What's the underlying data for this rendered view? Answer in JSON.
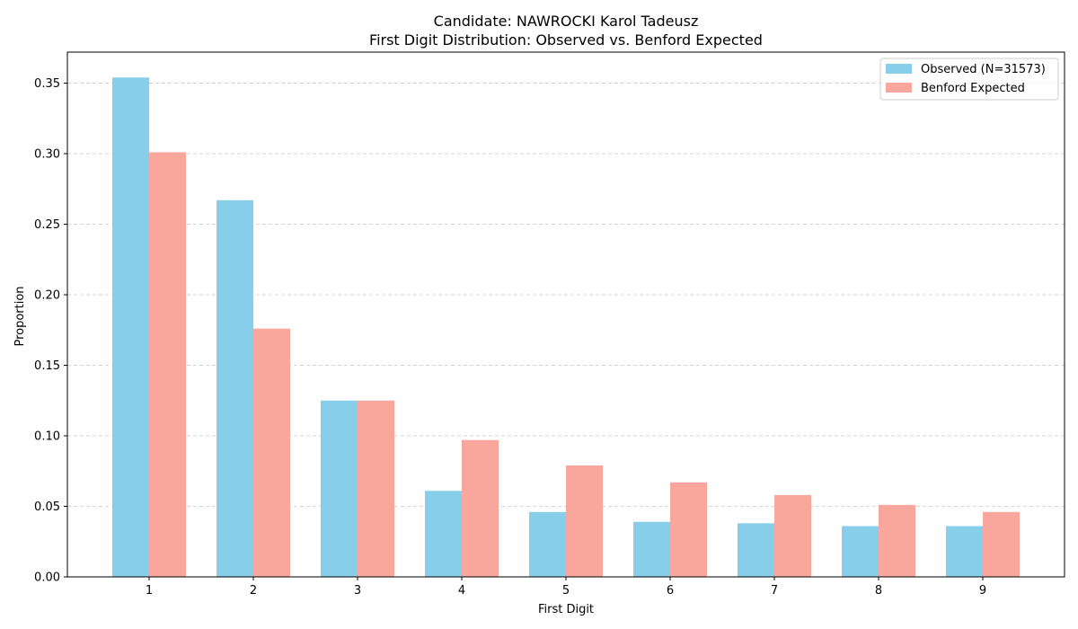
{
  "chart_data": {
    "type": "bar",
    "title": "Candidate: NAWROCKI Karol Tadeusz",
    "subtitle": "First Digit Distribution: Observed vs. Benford Expected",
    "xlabel": "First Digit",
    "ylabel": "Proportion",
    "categories": [
      "1",
      "2",
      "3",
      "4",
      "5",
      "6",
      "7",
      "8",
      "9"
    ],
    "series": [
      {
        "name": "Observed (N=31573)",
        "color": "#87ceeb",
        "values": [
          0.354,
          0.267,
          0.125,
          0.061,
          0.046,
          0.039,
          0.038,
          0.036,
          0.036
        ]
      },
      {
        "name": "Benford Expected",
        "color": "#f9a79d",
        "values": [
          0.301,
          0.176,
          0.125,
          0.097,
          0.079,
          0.067,
          0.058,
          0.051,
          0.046
        ]
      }
    ],
    "ylim": [
      0,
      0.372
    ],
    "yticks": [
      "0.00",
      "0.05",
      "0.10",
      "0.15",
      "0.20",
      "0.25",
      "0.30",
      "0.35"
    ],
    "grid": "y-dashed",
    "legend_position": "top-right"
  }
}
